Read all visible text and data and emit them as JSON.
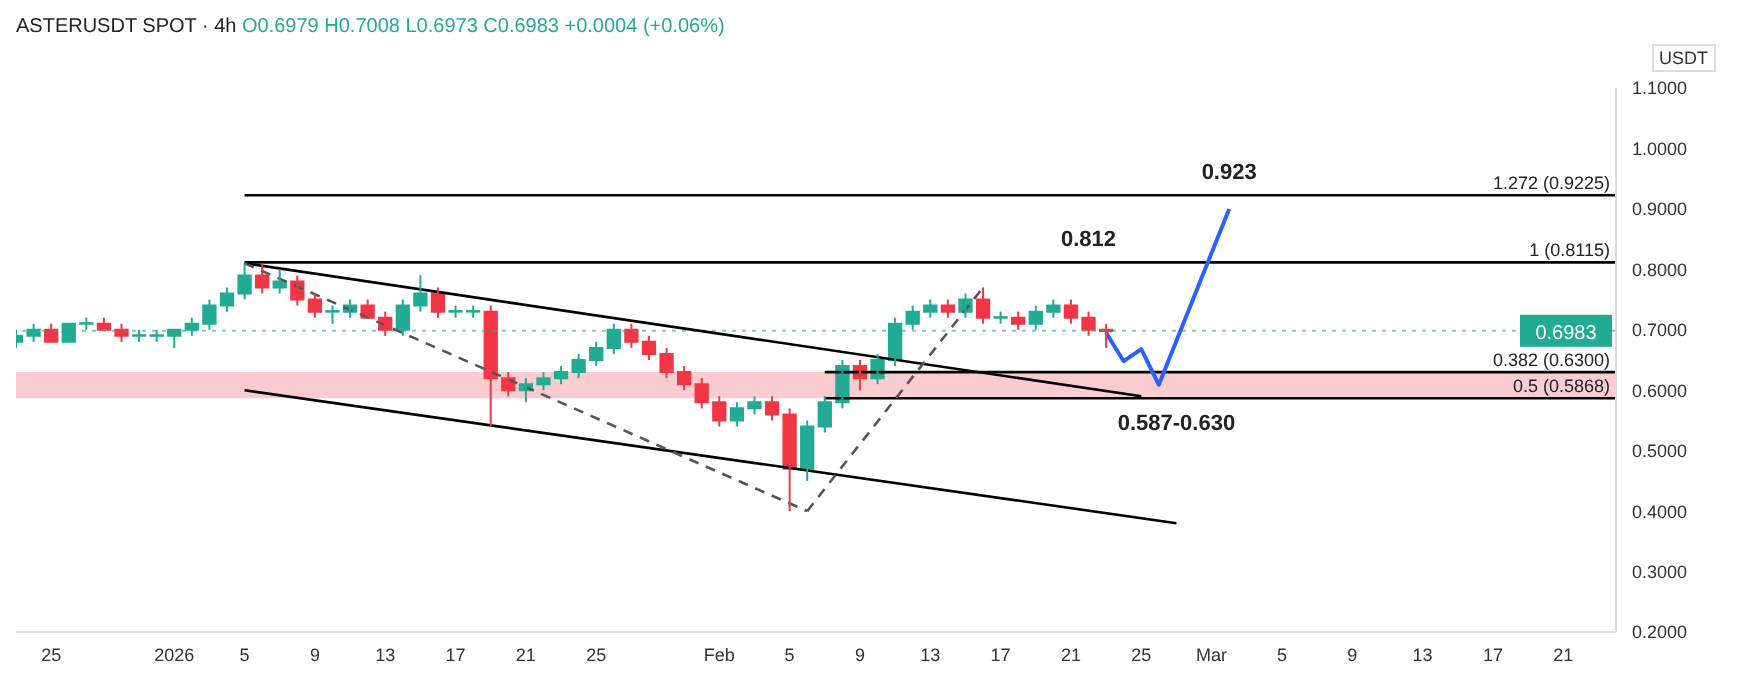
{
  "chart_data": {
    "type": "candlestick",
    "title": "ASTERUSDT SPOT · 4h",
    "subtitle": "O0.6979 H0.7008 L0.6973 C0.6983 +0.0004 (+0.06%)",
    "ylabel": "USDT",
    "x": [
      "2025-12-23",
      "2025-12-24",
      "2025-12-25",
      "2025-12-26",
      "2025-12-27",
      "2025-12-28",
      "2025-12-29",
      "2025-12-30",
      "2025-12-31",
      "2026-01-01",
      "2026-01-02",
      "2026-01-03",
      "2026-01-04",
      "2026-01-05",
      "2026-01-06",
      "2026-01-07",
      "2026-01-08",
      "2026-01-09",
      "2026-01-10",
      "2026-01-11",
      "2026-01-12",
      "2026-01-13",
      "2026-01-14",
      "2026-01-15",
      "2026-01-16",
      "2026-01-17",
      "2026-01-18",
      "2026-01-19",
      "2026-01-20",
      "2026-01-21",
      "2026-01-22",
      "2026-01-23",
      "2026-01-24",
      "2026-01-25",
      "2026-01-26",
      "2026-01-27",
      "2026-01-28",
      "2026-01-29",
      "2026-01-30",
      "2026-01-31",
      "2026-02-01",
      "2026-02-02",
      "2026-02-03",
      "2026-02-04",
      "2026-02-05",
      "2026-02-06",
      "2026-02-07",
      "2026-02-08",
      "2026-02-09",
      "2026-02-10",
      "2026-02-11",
      "2026-02-12",
      "2026-02-13",
      "2026-02-14",
      "2026-02-15",
      "2026-02-16",
      "2026-02-17",
      "2026-02-18",
      "2026-02-19",
      "2026-02-20",
      "2026-02-21",
      "2026-02-22",
      "2026-02-23"
    ],
    "ohlc": [
      [
        0.68,
        0.7,
        0.67,
        0.69
      ],
      [
        0.69,
        0.71,
        0.68,
        0.7
      ],
      [
        0.7,
        0.71,
        0.68,
        0.68
      ],
      [
        0.68,
        0.71,
        0.68,
        0.71
      ],
      [
        0.71,
        0.72,
        0.7,
        0.71
      ],
      [
        0.71,
        0.72,
        0.7,
        0.7
      ],
      [
        0.7,
        0.71,
        0.68,
        0.69
      ],
      [
        0.69,
        0.7,
        0.68,
        0.69
      ],
      [
        0.69,
        0.7,
        0.68,
        0.69
      ],
      [
        0.69,
        0.7,
        0.67,
        0.7
      ],
      [
        0.7,
        0.72,
        0.69,
        0.71
      ],
      [
        0.71,
        0.75,
        0.7,
        0.74
      ],
      [
        0.74,
        0.77,
        0.73,
        0.76
      ],
      [
        0.76,
        0.81,
        0.75,
        0.79
      ],
      [
        0.79,
        0.81,
        0.76,
        0.77
      ],
      [
        0.77,
        0.8,
        0.76,
        0.78
      ],
      [
        0.78,
        0.79,
        0.74,
        0.75
      ],
      [
        0.75,
        0.76,
        0.72,
        0.73
      ],
      [
        0.73,
        0.74,
        0.71,
        0.73
      ],
      [
        0.73,
        0.75,
        0.72,
        0.74
      ],
      [
        0.74,
        0.75,
        0.72,
        0.72
      ],
      [
        0.72,
        0.73,
        0.69,
        0.7
      ],
      [
        0.7,
        0.75,
        0.69,
        0.74
      ],
      [
        0.74,
        0.79,
        0.73,
        0.76
      ],
      [
        0.76,
        0.77,
        0.72,
        0.73
      ],
      [
        0.73,
        0.74,
        0.72,
        0.73
      ],
      [
        0.73,
        0.74,
        0.72,
        0.73
      ],
      [
        0.73,
        0.74,
        0.54,
        0.62
      ],
      [
        0.62,
        0.63,
        0.59,
        0.6
      ],
      [
        0.6,
        0.62,
        0.58,
        0.61
      ],
      [
        0.61,
        0.63,
        0.6,
        0.62
      ],
      [
        0.62,
        0.64,
        0.61,
        0.63
      ],
      [
        0.63,
        0.66,
        0.62,
        0.65
      ],
      [
        0.65,
        0.68,
        0.64,
        0.67
      ],
      [
        0.67,
        0.71,
        0.66,
        0.7
      ],
      [
        0.7,
        0.71,
        0.67,
        0.68
      ],
      [
        0.68,
        0.69,
        0.65,
        0.66
      ],
      [
        0.66,
        0.67,
        0.62,
        0.63
      ],
      [
        0.63,
        0.64,
        0.6,
        0.61
      ],
      [
        0.61,
        0.62,
        0.57,
        0.58
      ],
      [
        0.58,
        0.59,
        0.54,
        0.55
      ],
      [
        0.55,
        0.58,
        0.54,
        0.57
      ],
      [
        0.57,
        0.59,
        0.56,
        0.58
      ],
      [
        0.58,
        0.59,
        0.55,
        0.56
      ],
      [
        0.56,
        0.57,
        0.4,
        0.47
      ],
      [
        0.47,
        0.55,
        0.45,
        0.54
      ],
      [
        0.54,
        0.59,
        0.53,
        0.58
      ],
      [
        0.58,
        0.65,
        0.57,
        0.64
      ],
      [
        0.64,
        0.65,
        0.6,
        0.62
      ],
      [
        0.62,
        0.66,
        0.61,
        0.65
      ],
      [
        0.65,
        0.72,
        0.64,
        0.71
      ],
      [
        0.71,
        0.74,
        0.7,
        0.73
      ],
      [
        0.73,
        0.75,
        0.72,
        0.74
      ],
      [
        0.74,
        0.75,
        0.72,
        0.73
      ],
      [
        0.73,
        0.76,
        0.72,
        0.75
      ],
      [
        0.75,
        0.77,
        0.71,
        0.72
      ],
      [
        0.72,
        0.73,
        0.71,
        0.72
      ],
      [
        0.72,
        0.73,
        0.7,
        0.71
      ],
      [
        0.71,
        0.74,
        0.7,
        0.73
      ],
      [
        0.73,
        0.75,
        0.72,
        0.74
      ],
      [
        0.74,
        0.75,
        0.71,
        0.72
      ],
      [
        0.72,
        0.73,
        0.69,
        0.7
      ],
      [
        0.7,
        0.71,
        0.67,
        0.698
      ]
    ],
    "colors": [
      "#22ab94",
      "#22ab94",
      "#f23645",
      "#22ab94",
      "#22ab94",
      "#f23645",
      "#f23645",
      "#22ab94",
      "#22ab94",
      "#22ab94",
      "#22ab94",
      "#22ab94",
      "#22ab94",
      "#22ab94",
      "#f23645",
      "#22ab94",
      "#f23645",
      "#f23645",
      "#22ab94",
      "#22ab94",
      "#f23645",
      "#f23645",
      "#22ab94",
      "#22ab94",
      "#f23645",
      "#22ab94",
      "#22ab94",
      "#f23645",
      "#f23645",
      "#22ab94",
      "#22ab94",
      "#22ab94",
      "#22ab94",
      "#22ab94",
      "#22ab94",
      "#f23645",
      "#f23645",
      "#f23645",
      "#f23645",
      "#f23645",
      "#f23645",
      "#22ab94",
      "#22ab94",
      "#f23645",
      "#f23645",
      "#22ab94",
      "#22ab94",
      "#22ab94",
      "#f23645",
      "#22ab94",
      "#22ab94",
      "#22ab94",
      "#22ab94",
      "#f23645",
      "#22ab94",
      "#f23645",
      "#22ab94",
      "#f23645",
      "#22ab94",
      "#22ab94",
      "#f23645",
      "#f23645",
      "#f23645"
    ],
    "series": [
      {
        "type": "line",
        "x": [
          "2026-01-05",
          "2026-03-24"
        ],
        "values": [
          0.9225,
          0.9225
        ],
        "color": "#000000",
        "line_style": "solid"
      },
      {
        "type": "line",
        "x": [
          "2026-01-05",
          "2026-03-24"
        ],
        "values": [
          0.8115,
          0.8115
        ],
        "color": "#000000",
        "line_style": "solid"
      },
      {
        "type": "line",
        "x": [
          "2026-02-07",
          "2026-03-24"
        ],
        "values": [
          0.63,
          0.63
        ],
        "color": "#000000",
        "line_style": "solid"
      },
      {
        "type": "line",
        "x": [
          "2026-02-07",
          "2026-03-24"
        ],
        "values": [
          0.5868,
          0.5868
        ],
        "color": "#000000",
        "line_style": "solid"
      },
      {
        "type": "line",
        "x": [
          "2026-01-05",
          "2026-02-25"
        ],
        "values": [
          0.81,
          0.59
        ],
        "color": "#000000",
        "line_style": "solid"
      },
      {
        "type": "line",
        "x": [
          "2026-01-05",
          "2026-02-27"
        ],
        "values": [
          0.6,
          0.38
        ],
        "color": "#000000",
        "line_style": "solid"
      },
      {
        "type": "line",
        "x": [
          "2026-01-05",
          "2026-02-06"
        ],
        "values": [
          0.81,
          0.4
        ],
        "color": "#555555",
        "line_style": "dashed"
      },
      {
        "type": "line",
        "x": [
          "2026-02-06",
          "2026-02-16"
        ],
        "values": [
          0.4,
          0.77
        ],
        "color": "#555555",
        "line_style": "dashed"
      },
      {
        "type": "line",
        "x": [
          "2026-02-23",
          "2026-02-24",
          "2026-02-25",
          "2026-02-26",
          "2026-03-02"
        ],
        "values": [
          0.695,
          0.648,
          0.668,
          0.609,
          0.9
        ],
        "color": "#2962ff",
        "line_style": "solid"
      }
    ],
    "bands": [
      {
        "axis": "y",
        "from": 0.5868,
        "to": 0.63,
        "color": "#f7b6bb"
      }
    ],
    "ref_lines": [
      {
        "axis": "y",
        "value": 0.6983,
        "label": "0.6983",
        "color": "#22ab94",
        "line_style": "dotted"
      }
    ],
    "annotations": [
      {
        "text": "1.272 (0.9225)",
        "x": "2026-03-24",
        "y": 0.9225
      },
      {
        "text": "1 (0.8115)",
        "x": "2026-03-24",
        "y": 0.8115
      },
      {
        "text": "0.382 (0.6300)",
        "x": "2026-03-24",
        "y": 0.63
      },
      {
        "text": "0.5 (0.5868)",
        "x": "2026-03-24",
        "y": 0.5868
      },
      {
        "text": "0.923",
        "x": "2026-03-02",
        "y": 0.9225
      },
      {
        "text": "0.812",
        "x": "2026-02-22",
        "y": 0.8115
      },
      {
        "text": "0.587-0.630",
        "x": "2026-02-27",
        "y": 0.5868
      }
    ],
    "xlim": [
      "2025-12-23",
      "2026-03-24"
    ],
    "xticks": [
      {
        "value": "2025-12-25",
        "label": "25"
      },
      {
        "value": "2026-01-01",
        "label": "2026"
      },
      {
        "value": "2026-01-05",
        "label": "5"
      },
      {
        "value": "2026-01-09",
        "label": "9"
      },
      {
        "value": "2026-01-13",
        "label": "13"
      },
      {
        "value": "2026-01-17",
        "label": "17"
      },
      {
        "value": "2026-01-21",
        "label": "21"
      },
      {
        "value": "2026-01-25",
        "label": "25"
      },
      {
        "value": "2026-02-01",
        "label": "Feb"
      },
      {
        "value": "2026-02-05",
        "label": "5"
      },
      {
        "value": "2026-02-09",
        "label": "9"
      },
      {
        "value": "2026-02-13",
        "label": "13"
      },
      {
        "value": "2026-02-17",
        "label": "17"
      },
      {
        "value": "2026-02-21",
        "label": "21"
      },
      {
        "value": "2026-02-25",
        "label": "25"
      },
      {
        "value": "2026-03-01",
        "label": "Mar"
      },
      {
        "value": "2026-03-05",
        "label": "5"
      },
      {
        "value": "2026-03-09",
        "label": "9"
      },
      {
        "value": "2026-03-13",
        "label": "13"
      },
      {
        "value": "2026-03-17",
        "label": "17"
      },
      {
        "value": "2026-03-21",
        "label": "21"
      }
    ],
    "ylim": [
      0.2,
      1.1
    ],
    "yticks": [
      {
        "value": 0.2,
        "label": "0.2000"
      },
      {
        "value": 0.3,
        "label": "0.3000"
      },
      {
        "value": 0.4,
        "label": "0.4000"
      },
      {
        "value": 0.5,
        "label": "0.5000"
      },
      {
        "value": 0.6,
        "label": "0.6000"
      },
      {
        "value": 0.7,
        "label": "0.7000"
      },
      {
        "value": 0.8,
        "label": "0.8000"
      },
      {
        "value": 0.9,
        "label": "0.9000"
      },
      {
        "value": 1.0,
        "label": "1.0000"
      },
      {
        "value": 1.1,
        "label": "1.1000"
      }
    ],
    "grid": false
  }
}
